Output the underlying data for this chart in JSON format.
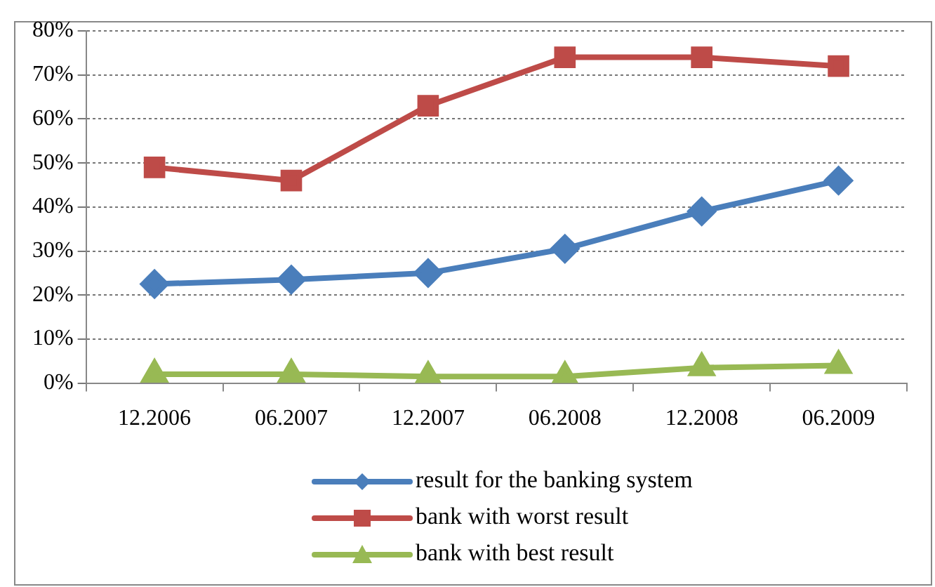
{
  "chart_data": {
    "type": "line",
    "categories": [
      "12.2006",
      "06.2007",
      "12.2007",
      "06.2008",
      "12.2008",
      "06.2009"
    ],
    "series": [
      {
        "name": "result for the banking system",
        "color": "#4a7ebb",
        "marker": "diamond",
        "values": [
          22.5,
          23.5,
          25,
          30.5,
          39,
          46
        ]
      },
      {
        "name": "bank with worst result",
        "color": "#be4b48",
        "marker": "square",
        "values": [
          49,
          46,
          63,
          74,
          74,
          72
        ]
      },
      {
        "name": "bank with best result",
        "color": "#98b954",
        "marker": "triangle",
        "values": [
          2,
          2,
          1.5,
          1.5,
          3.5,
          4
        ]
      }
    ],
    "ylim": [
      0,
      80
    ],
    "yticks": [
      {
        "value": 0,
        "label": "0%"
      },
      {
        "value": 10,
        "label": "10%"
      },
      {
        "value": 20,
        "label": "20%"
      },
      {
        "value": 30,
        "label": "30%"
      },
      {
        "value": 40,
        "label": "40%"
      },
      {
        "value": 50,
        "label": "50%"
      },
      {
        "value": 60,
        "label": "60%"
      },
      {
        "value": 70,
        "label": "70%"
      },
      {
        "value": 80,
        "label": "80%"
      }
    ],
    "grid": "y",
    "legend": "bottom",
    "line_style": "solid"
  }
}
